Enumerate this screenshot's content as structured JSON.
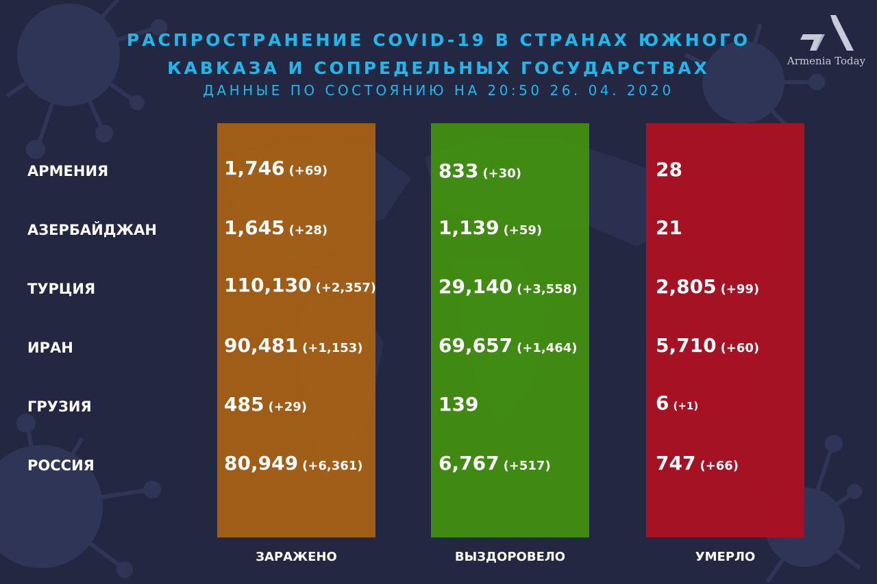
{
  "header": {
    "title_line1": "РАСПРОСТРАНЕНИЕ COVID-19 В СТРАНАХ ЮЖНОГО",
    "title_line2": "КАВКАЗА И СОПРЕДЕЛЬНЫХ ГОСУДАРСТВАХ",
    "subtitle": "ДАННЫЕ ПО СОСТОЯНИЮ НА 20:50  26. 04. 2020"
  },
  "logo": {
    "text": "Armenia Today",
    "color": "#c7cad8"
  },
  "colors": {
    "background": "#232742",
    "title": "#1fb8ec",
    "infected": "#a8621a",
    "recovered": "#438f14",
    "deaths": "#ad1122"
  },
  "columns": [
    "ЗАРАЖЕНО",
    "ВЫЗДОРОВЕЛО",
    "УМЕРЛО"
  ],
  "rows": [
    {
      "country": "АРМЕНИЯ",
      "infected": "1,746",
      "infected_delta": "(+69)",
      "recovered": "833",
      "recovered_delta": "(+30)",
      "deaths": "28",
      "deaths_delta": ""
    },
    {
      "country": "АЗЕРБАЙДЖАН",
      "infected": "1,645",
      "infected_delta": "(+28)",
      "recovered": "1,139",
      "recovered_delta": "(+59)",
      "deaths": "21",
      "deaths_delta": ""
    },
    {
      "country": "ТУРЦИЯ",
      "infected": "110,130",
      "infected_delta": "(+2,357)",
      "recovered": "29,140",
      "recovered_delta": "(+3,558)",
      "deaths": "2,805",
      "deaths_delta": "(+99)"
    },
    {
      "country": "ИРАН",
      "infected": "90,481",
      "infected_delta": "(+1,153)",
      "recovered": "69,657",
      "recovered_delta": "(+1,464)",
      "deaths": "5,710",
      "deaths_delta": "(+60)"
    },
    {
      "country": "ГРУЗИЯ",
      "infected": "485",
      "infected_delta": "(+29)",
      "recovered": "139",
      "recovered_delta": "",
      "deaths": "6",
      "deaths_delta": "(+1)"
    },
    {
      "country": "РОССИЯ",
      "infected": "80,949",
      "infected_delta": "(+6,361)",
      "recovered": "6,767",
      "recovered_delta": "(+517)",
      "deaths": "747",
      "deaths_delta": "(+66)"
    }
  ]
}
